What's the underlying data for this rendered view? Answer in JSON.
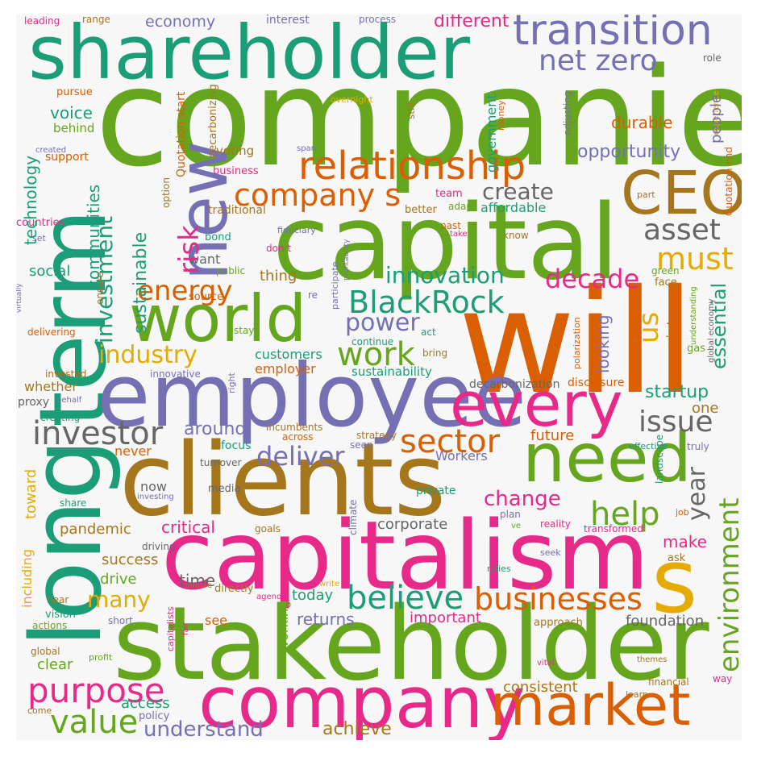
{
  "palette": {
    "green": "#66a61e",
    "teal": "#1b9e77",
    "orange": "#d95f02",
    "purple": "#7570b3",
    "pink": "#e7298a",
    "brown": "#a6761d",
    "yellow": "#e6ab02",
    "gray": "#666666",
    "background": "#f7f7f7"
  },
  "words": [
    {
      "text": "companies",
      "color": "green"
    },
    {
      "text": "shareholder",
      "color": "teal"
    },
    {
      "text": "transition",
      "color": "purple"
    },
    {
      "text": "net zero",
      "color": "purple"
    },
    {
      "text": "different",
      "color": "pink"
    },
    {
      "text": "economy",
      "color": "purple"
    },
    {
      "text": "interest",
      "color": "purple"
    },
    {
      "text": "process",
      "color": "purple"
    },
    {
      "text": "range",
      "color": "brown"
    },
    {
      "text": "leading",
      "color": "pink"
    },
    {
      "text": "capital",
      "color": "green"
    },
    {
      "text": "CEO",
      "color": "brown"
    },
    {
      "text": "relationship",
      "color": "orange"
    },
    {
      "text": "company s",
      "color": "orange"
    },
    {
      "text": "new",
      "color": "purple"
    },
    {
      "text": "term",
      "color": "teal"
    },
    {
      "text": "long",
      "color": "teal"
    },
    {
      "text": "will",
      "color": "orange"
    },
    {
      "text": "world",
      "color": "green"
    },
    {
      "text": "employee",
      "color": "purple"
    },
    {
      "text": "every",
      "color": "pink"
    },
    {
      "text": "clients",
      "color": "brown"
    },
    {
      "text": "need",
      "color": "green"
    },
    {
      "text": "capitalism",
      "color": "pink"
    },
    {
      "text": "s",
      "color": "yellow"
    },
    {
      "text": "stakeholder",
      "color": "green"
    },
    {
      "text": "company",
      "color": "pink"
    },
    {
      "text": "market",
      "color": "orange"
    },
    {
      "text": "purpose",
      "color": "pink"
    },
    {
      "text": "value",
      "color": "green"
    },
    {
      "text": "understand",
      "color": "purple"
    },
    {
      "text": "achieve",
      "color": "brown"
    },
    {
      "text": "businesses",
      "color": "orange"
    },
    {
      "text": "believe",
      "color": "teal"
    },
    {
      "text": "help",
      "color": "green"
    },
    {
      "text": "environment",
      "color": "green"
    },
    {
      "text": "sector",
      "color": "orange"
    },
    {
      "text": "investor",
      "color": "gray"
    },
    {
      "text": "deliver",
      "color": "purple"
    },
    {
      "text": "issue",
      "color": "gray"
    },
    {
      "text": "work",
      "color": "green"
    },
    {
      "text": "industry",
      "color": "yellow"
    },
    {
      "text": "energy",
      "color": "orange"
    },
    {
      "text": "BlackRock",
      "color": "teal"
    },
    {
      "text": "innovation",
      "color": "teal"
    },
    {
      "text": "decade",
      "color": "pink"
    },
    {
      "text": "power",
      "color": "purple"
    },
    {
      "text": "asset",
      "color": "gray"
    },
    {
      "text": "must",
      "color": "yellow"
    },
    {
      "text": "create",
      "color": "gray"
    },
    {
      "text": "opportunity",
      "color": "purple"
    },
    {
      "text": "durable",
      "color": "orange"
    },
    {
      "text": "voting",
      "color": "brown"
    },
    {
      "text": "voice",
      "color": "teal"
    },
    {
      "text": "behind",
      "color": "green"
    },
    {
      "text": "support",
      "color": "orange"
    },
    {
      "text": "created",
      "color": "purple"
    },
    {
      "text": "business",
      "color": "pink"
    },
    {
      "text": "team",
      "color": "pink"
    },
    {
      "text": "adapt",
      "color": "green"
    },
    {
      "text": "better",
      "color": "brown"
    },
    {
      "text": "affordable",
      "color": "teal"
    },
    {
      "text": "traditional",
      "color": "brown"
    },
    {
      "text": "past",
      "color": "orange"
    },
    {
      "text": "take",
      "color": "pink"
    },
    {
      "text": "know",
      "color": "brown"
    },
    {
      "text": "part",
      "color": "brown"
    },
    {
      "text": "bond",
      "color": "teal"
    },
    {
      "text": "countries",
      "color": "pink"
    },
    {
      "text": "set",
      "color": "purple"
    },
    {
      "text": "fiduciary",
      "color": "purple"
    },
    {
      "text": "don t",
      "color": "pink"
    },
    {
      "text": "want",
      "color": "gray"
    },
    {
      "text": "public",
      "color": "green"
    },
    {
      "text": "green",
      "color": "green"
    },
    {
      "text": "face",
      "color": "brown"
    },
    {
      "text": "thing",
      "color": "brown"
    },
    {
      "text": "source",
      "color": "orange"
    },
    {
      "text": "re",
      "color": "purple"
    },
    {
      "text": "delivering",
      "color": "orange"
    },
    {
      "text": "stay",
      "color": "green"
    },
    {
      "text": "act",
      "color": "teal"
    },
    {
      "text": "continue",
      "color": "teal"
    },
    {
      "text": "bring",
      "color": "brown"
    },
    {
      "text": "gas",
      "color": "green"
    },
    {
      "text": "customers",
      "color": "teal"
    },
    {
      "text": "employer",
      "color": "orange"
    },
    {
      "text": "sustainability",
      "color": "teal"
    },
    {
      "text": "invested",
      "color": "orange"
    },
    {
      "text": "innovative",
      "color": "purple"
    },
    {
      "text": "whether",
      "color": "brown"
    },
    {
      "text": "proxy",
      "color": "gray"
    },
    {
      "text": "behalf",
      "color": "purple"
    },
    {
      "text": "creating",
      "color": "teal"
    },
    {
      "text": "decarbonization",
      "color": "gray"
    },
    {
      "text": "disclosure",
      "color": "orange"
    },
    {
      "text": "startup",
      "color": "teal"
    },
    {
      "text": "one",
      "color": "brown"
    },
    {
      "text": "around",
      "color": "purple"
    },
    {
      "text": "incumbents",
      "color": "brown"
    },
    {
      "text": "across",
      "color": "orange"
    },
    {
      "text": "focus",
      "color": "teal"
    },
    {
      "text": "strategy",
      "color": "brown"
    },
    {
      "text": "seen",
      "color": "purple"
    },
    {
      "text": "never",
      "color": "orange"
    },
    {
      "text": "Workers",
      "color": "purple"
    },
    {
      "text": "future",
      "color": "orange"
    },
    {
      "text": "year",
      "color": "gray"
    },
    {
      "text": "effective",
      "color": "teal"
    },
    {
      "text": "truly",
      "color": "purple"
    },
    {
      "text": "turnover",
      "color": "gray"
    },
    {
      "text": "now",
      "color": "gray"
    },
    {
      "text": "media",
      "color": "gray"
    },
    {
      "text": "investing",
      "color": "purple"
    },
    {
      "text": "share",
      "color": "teal"
    },
    {
      "text": "private",
      "color": "teal"
    },
    {
      "text": "change",
      "color": "pink"
    },
    {
      "text": "plan",
      "color": "purple"
    },
    {
      "text": "ve",
      "color": "green"
    },
    {
      "text": "reality",
      "color": "pink"
    },
    {
      "text": "transformed",
      "color": "pink"
    },
    {
      "text": "job",
      "color": "orange"
    },
    {
      "text": "pandemic",
      "color": "brown"
    },
    {
      "text": "critical",
      "color": "pink"
    },
    {
      "text": "goals",
      "color": "brown"
    },
    {
      "text": "corporate",
      "color": "gray"
    },
    {
      "text": "make",
      "color": "pink"
    },
    {
      "text": "ask",
      "color": "brown"
    },
    {
      "text": "seek",
      "color": "purple"
    },
    {
      "text": "success",
      "color": "brown"
    },
    {
      "text": "driving",
      "color": "gray"
    },
    {
      "text": "drive",
      "color": "green"
    },
    {
      "text": "time",
      "color": "gray"
    },
    {
      "text": "evolve",
      "color": "brown"
    },
    {
      "text": "directly",
      "color": "brown"
    },
    {
      "text": "relies",
      "color": "teal"
    },
    {
      "text": "many",
      "color": "yellow"
    },
    {
      "text": "today",
      "color": "teal"
    },
    {
      "text": "returns",
      "color": "purple"
    },
    {
      "text": "important",
      "color": "pink"
    },
    {
      "text": "approach",
      "color": "brown"
    },
    {
      "text": "foundation",
      "color": "gray"
    },
    {
      "text": "write",
      "color": "yellow"
    },
    {
      "text": "agenda",
      "color": "pink"
    },
    {
      "text": "see",
      "color": "orange"
    },
    {
      "text": "vision",
      "color": "teal"
    },
    {
      "text": "actions",
      "color": "green"
    },
    {
      "text": "short",
      "color": "purple"
    },
    {
      "text": "hear",
      "color": "brown"
    },
    {
      "text": "global",
      "color": "brown"
    },
    {
      "text": "profit",
      "color": "green"
    },
    {
      "text": "clear",
      "color": "green"
    },
    {
      "text": "access",
      "color": "teal"
    },
    {
      "text": "policy",
      "color": "purple"
    },
    {
      "text": "come",
      "color": "brown"
    },
    {
      "text": "consistent",
      "color": "brown"
    },
    {
      "text": "financial",
      "color": "brown"
    },
    {
      "text": "learn",
      "color": "brown"
    },
    {
      "text": "themes",
      "color": "brown"
    },
    {
      "text": "vital",
      "color": "pink"
    },
    {
      "text": "way",
      "color": "pink"
    },
    {
      "text": "social",
      "color": "teal"
    },
    {
      "text": "looking",
      "color": "purple"
    },
    {
      "text": "us",
      "color": "yellow"
    },
    {
      "text": "risk",
      "color": "pink"
    },
    {
      "text": "investment",
      "color": "teal"
    },
    {
      "text": "sustainable",
      "color": "teal"
    },
    {
      "text": "communities",
      "color": "teal"
    },
    {
      "text": "technology",
      "color": "teal"
    },
    {
      "text": "Quotation start",
      "color": "orange"
    },
    {
      "text": "decarbonizing",
      "color": "brown"
    },
    {
      "text": "overnight",
      "color": "yellow"
    },
    {
      "text": "pursue",
      "color": "orange"
    },
    {
      "text": "still",
      "color": "brown"
    },
    {
      "text": "full",
      "color": "green"
    },
    {
      "text": "money",
      "color": "orange"
    },
    {
      "text": "span",
      "color": "purple"
    },
    {
      "text": "adjusting",
      "color": "purple"
    },
    {
      "text": "experience",
      "color": "yellow"
    },
    {
      "text": "Quotation end",
      "color": "orange"
    },
    {
      "text": "role",
      "color": "gray"
    },
    {
      "text": "government",
      "color": "teal"
    },
    {
      "text": "people",
      "color": "purple"
    },
    {
      "text": "option",
      "color": "brown"
    },
    {
      "text": "ensure",
      "color": "brown"
    },
    {
      "text": "virtually",
      "color": "purple"
    },
    {
      "text": "participate",
      "color": "purple"
    },
    {
      "text": "profitability",
      "color": "purple"
    },
    {
      "text": "society",
      "color": "orange"
    },
    {
      "text": "essential",
      "color": "teal"
    },
    {
      "text": "global economy",
      "color": "gray"
    },
    {
      "text": "understanding",
      "color": "green"
    },
    {
      "text": "polarization",
      "color": "orange"
    },
    {
      "text": "right",
      "color": "purple"
    },
    {
      "text": "including",
      "color": "yellow"
    },
    {
      "text": "toward",
      "color": "yellow"
    },
    {
      "text": "working",
      "color": "green"
    },
    {
      "text": "capitalists",
      "color": "pink"
    },
    {
      "text": "fair",
      "color": "pink"
    },
    {
      "text": "climate",
      "color": "purple"
    },
    {
      "text": "landscape",
      "color": "teal"
    }
  ]
}
